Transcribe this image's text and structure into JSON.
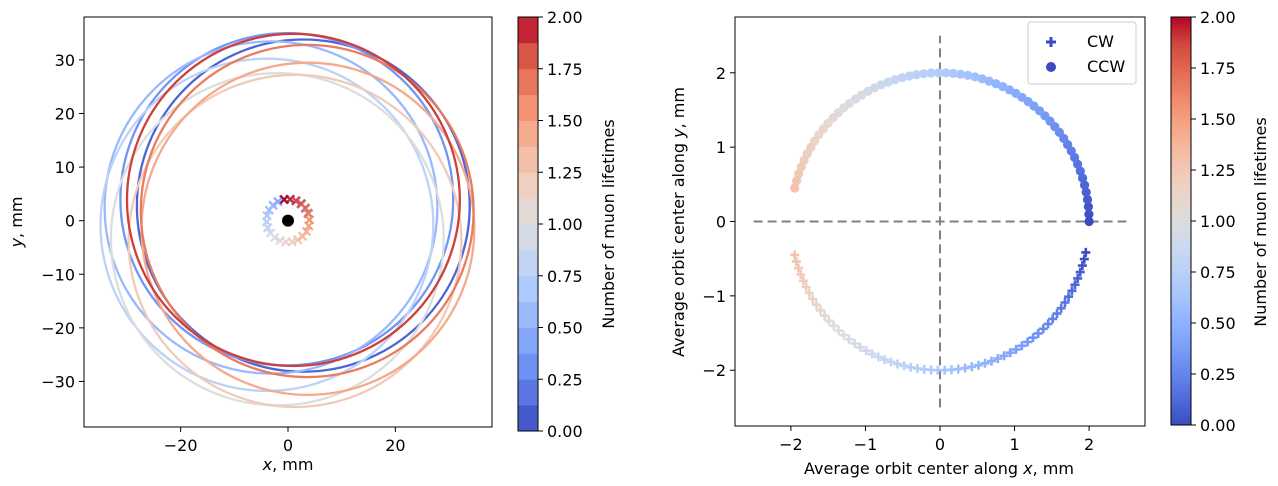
{
  "chart_data": [
    {
      "type": "line",
      "title": "",
      "xlabel_var": "x",
      "xlabel_unit": ", mm",
      "ylabel_var": "y",
      "ylabel_unit": ", mm",
      "xlim": [
        -38,
        38
      ],
      "ylim": [
        -38.5,
        38
      ],
      "xticks": [
        -20,
        0,
        20
      ],
      "yticks": [
        -30,
        -20,
        -10,
        0,
        10,
        20,
        30
      ],
      "orbit_radius_mm": 31,
      "orbit_center_radius_mm": 4,
      "orbit_center_start_angle_deg": 20,
      "orbit_center_end_angle_deg": 460,
      "orbit_count": 9,
      "muon_position": [
        0,
        0
      ],
      "colorbar": {
        "label": "Number of muon lifetimes",
        "min": 0,
        "max": 2,
        "levels": 16,
        "ticks": [
          "0.00",
          "0.25",
          "0.50",
          "0.75",
          "1.00",
          "1.25",
          "1.50",
          "1.75",
          "2.00"
        ],
        "colormap": "coolwarm",
        "colors": [
          "#3b4cc0",
          "#4f69d9",
          "#6485ec",
          "#7a9df8",
          "#8fb1fe",
          "#a5c3fe",
          "#b9d0f9",
          "#cbd8ee",
          "#dcdddd",
          "#e9d5cb",
          "#f2c8b4",
          "#f6b69b",
          "#f4a07e",
          "#ed8566",
          "#e16751",
          "#d0473d",
          "#b40426"
        ]
      }
    },
    {
      "type": "scatter",
      "title": "",
      "xlabel_pre": "Average orbit center along ",
      "xlabel_var": "x",
      "xlabel_unit": ", mm",
      "ylabel_pre": "Average orbit center along ",
      "ylabel_var": "y",
      "ylabel_unit": ", mm",
      "xlim": [
        -2.75,
        2.75
      ],
      "ylim": [
        -2.75,
        2.75
      ],
      "xticks": [
        -2,
        -1,
        0,
        1,
        2
      ],
      "yticks": [
        -2,
        -1,
        0,
        1,
        2
      ],
      "center_radius_mm": 2,
      "crosshair_extent": 2.5,
      "series": [
        {
          "name": "CW",
          "marker": "plus",
          "angle_start_deg": -12,
          "angle_end_deg": -167,
          "points": 60,
          "lifetime_range": [
            0,
            1.3
          ]
        },
        {
          "name": "CCW",
          "marker": "circle",
          "angle_start_deg": 0,
          "angle_end_deg": 167,
          "points": 60,
          "lifetime_range": [
            0,
            1.3
          ]
        }
      ],
      "legend": {
        "entries": [
          "CW",
          "CCW"
        ],
        "location": "upper right"
      },
      "colorbar": {
        "label": "Number of muon lifetimes",
        "min": 0,
        "max": 2,
        "ticks": [
          "0.00",
          "0.25",
          "0.50",
          "0.75",
          "1.00",
          "1.25",
          "1.50",
          "1.75",
          "2.00"
        ],
        "colormap": "coolwarm",
        "colors": [
          "#3b4cc0",
          "#4f69d9",
          "#6485ec",
          "#7a9df8",
          "#8fb1fe",
          "#a5c3fe",
          "#b9d0f9",
          "#cbd8ee",
          "#dcdddd",
          "#e9d5cb",
          "#f2c8b4",
          "#f6b69b",
          "#f4a07e",
          "#ed8566",
          "#e16751",
          "#d0473d",
          "#b40426"
        ]
      }
    }
  ]
}
